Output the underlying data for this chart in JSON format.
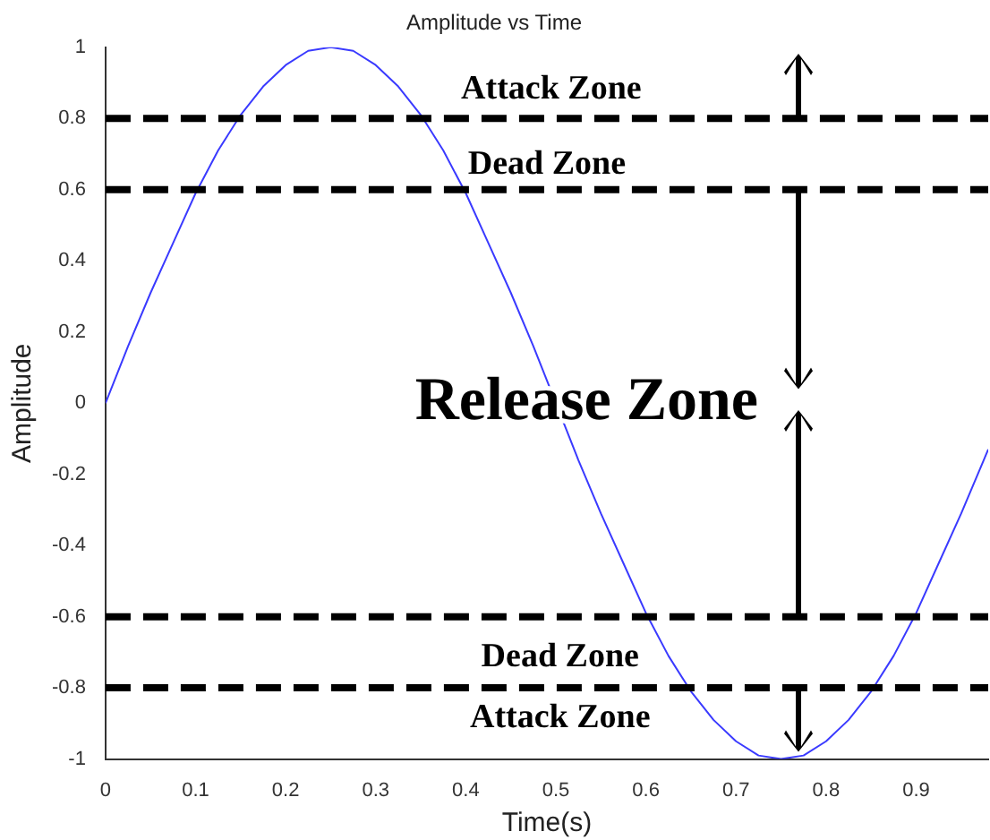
{
  "chart_data": {
    "type": "line",
    "title": "Amplitude vs Time",
    "xlabel": "Time(s)",
    "ylabel": "Amplitude",
    "x": [
      0,
      0.025,
      0.05,
      0.075,
      0.1,
      0.125,
      0.15,
      0.175,
      0.2,
      0.225,
      0.25,
      0.275,
      0.3,
      0.325,
      0.35,
      0.375,
      0.4,
      0.425,
      0.45,
      0.475,
      0.5,
      0.525,
      0.55,
      0.575,
      0.6,
      0.625,
      0.65,
      0.675,
      0.7,
      0.725,
      0.75,
      0.775,
      0.8,
      0.825,
      0.85,
      0.875,
      0.9,
      0.925,
      0.95,
      0.975,
      0.98
    ],
    "series": [
      {
        "color": "#3a3aff",
        "values": [
          0,
          0.16,
          0.31,
          0.45,
          0.59,
          0.71,
          0.81,
          0.89,
          0.95,
          0.99,
          1,
          0.99,
          0.95,
          0.89,
          0.81,
          0.71,
          0.59,
          0.45,
          0.31,
          0.16,
          0,
          -0.16,
          -0.31,
          -0.45,
          -0.59,
          -0.71,
          -0.81,
          -0.89,
          -0.95,
          -0.99,
          -1,
          -0.99,
          -0.95,
          -0.89,
          -0.81,
          -0.71,
          -0.59,
          -0.45,
          -0.31,
          -0.16,
          -0.13
        ]
      }
    ],
    "xlim": [
      0,
      0.98
    ],
    "xticks": [
      0,
      0.1,
      0.2,
      0.3,
      0.4,
      0.5,
      0.6,
      0.7,
      0.8,
      0.9
    ],
    "ylim": [
      -1,
      1
    ],
    "yticks": [
      -1,
      -0.8,
      -0.6,
      -0.4,
      -0.2,
      0,
      0.2,
      0.4,
      0.6,
      0.8,
      1
    ],
    "grid": false,
    "legend": false,
    "marker": "none",
    "line_style": "solid",
    "ref_lines": [
      {
        "axis": "y",
        "value": 0.8,
        "color": "#000000",
        "line_style": "dashed"
      },
      {
        "axis": "y",
        "value": 0.6,
        "color": "#000000",
        "line_style": "dashed"
      },
      {
        "axis": "y",
        "value": -0.6,
        "color": "#000000",
        "line_style": "dashed"
      },
      {
        "axis": "y",
        "value": -0.8,
        "color": "#000000",
        "line_style": "dashed"
      }
    ],
    "annotations": [
      "Attack Zone",
      "Dead Zone",
      "Release Zone",
      "Dead Zone",
      "Attack Zone"
    ]
  }
}
